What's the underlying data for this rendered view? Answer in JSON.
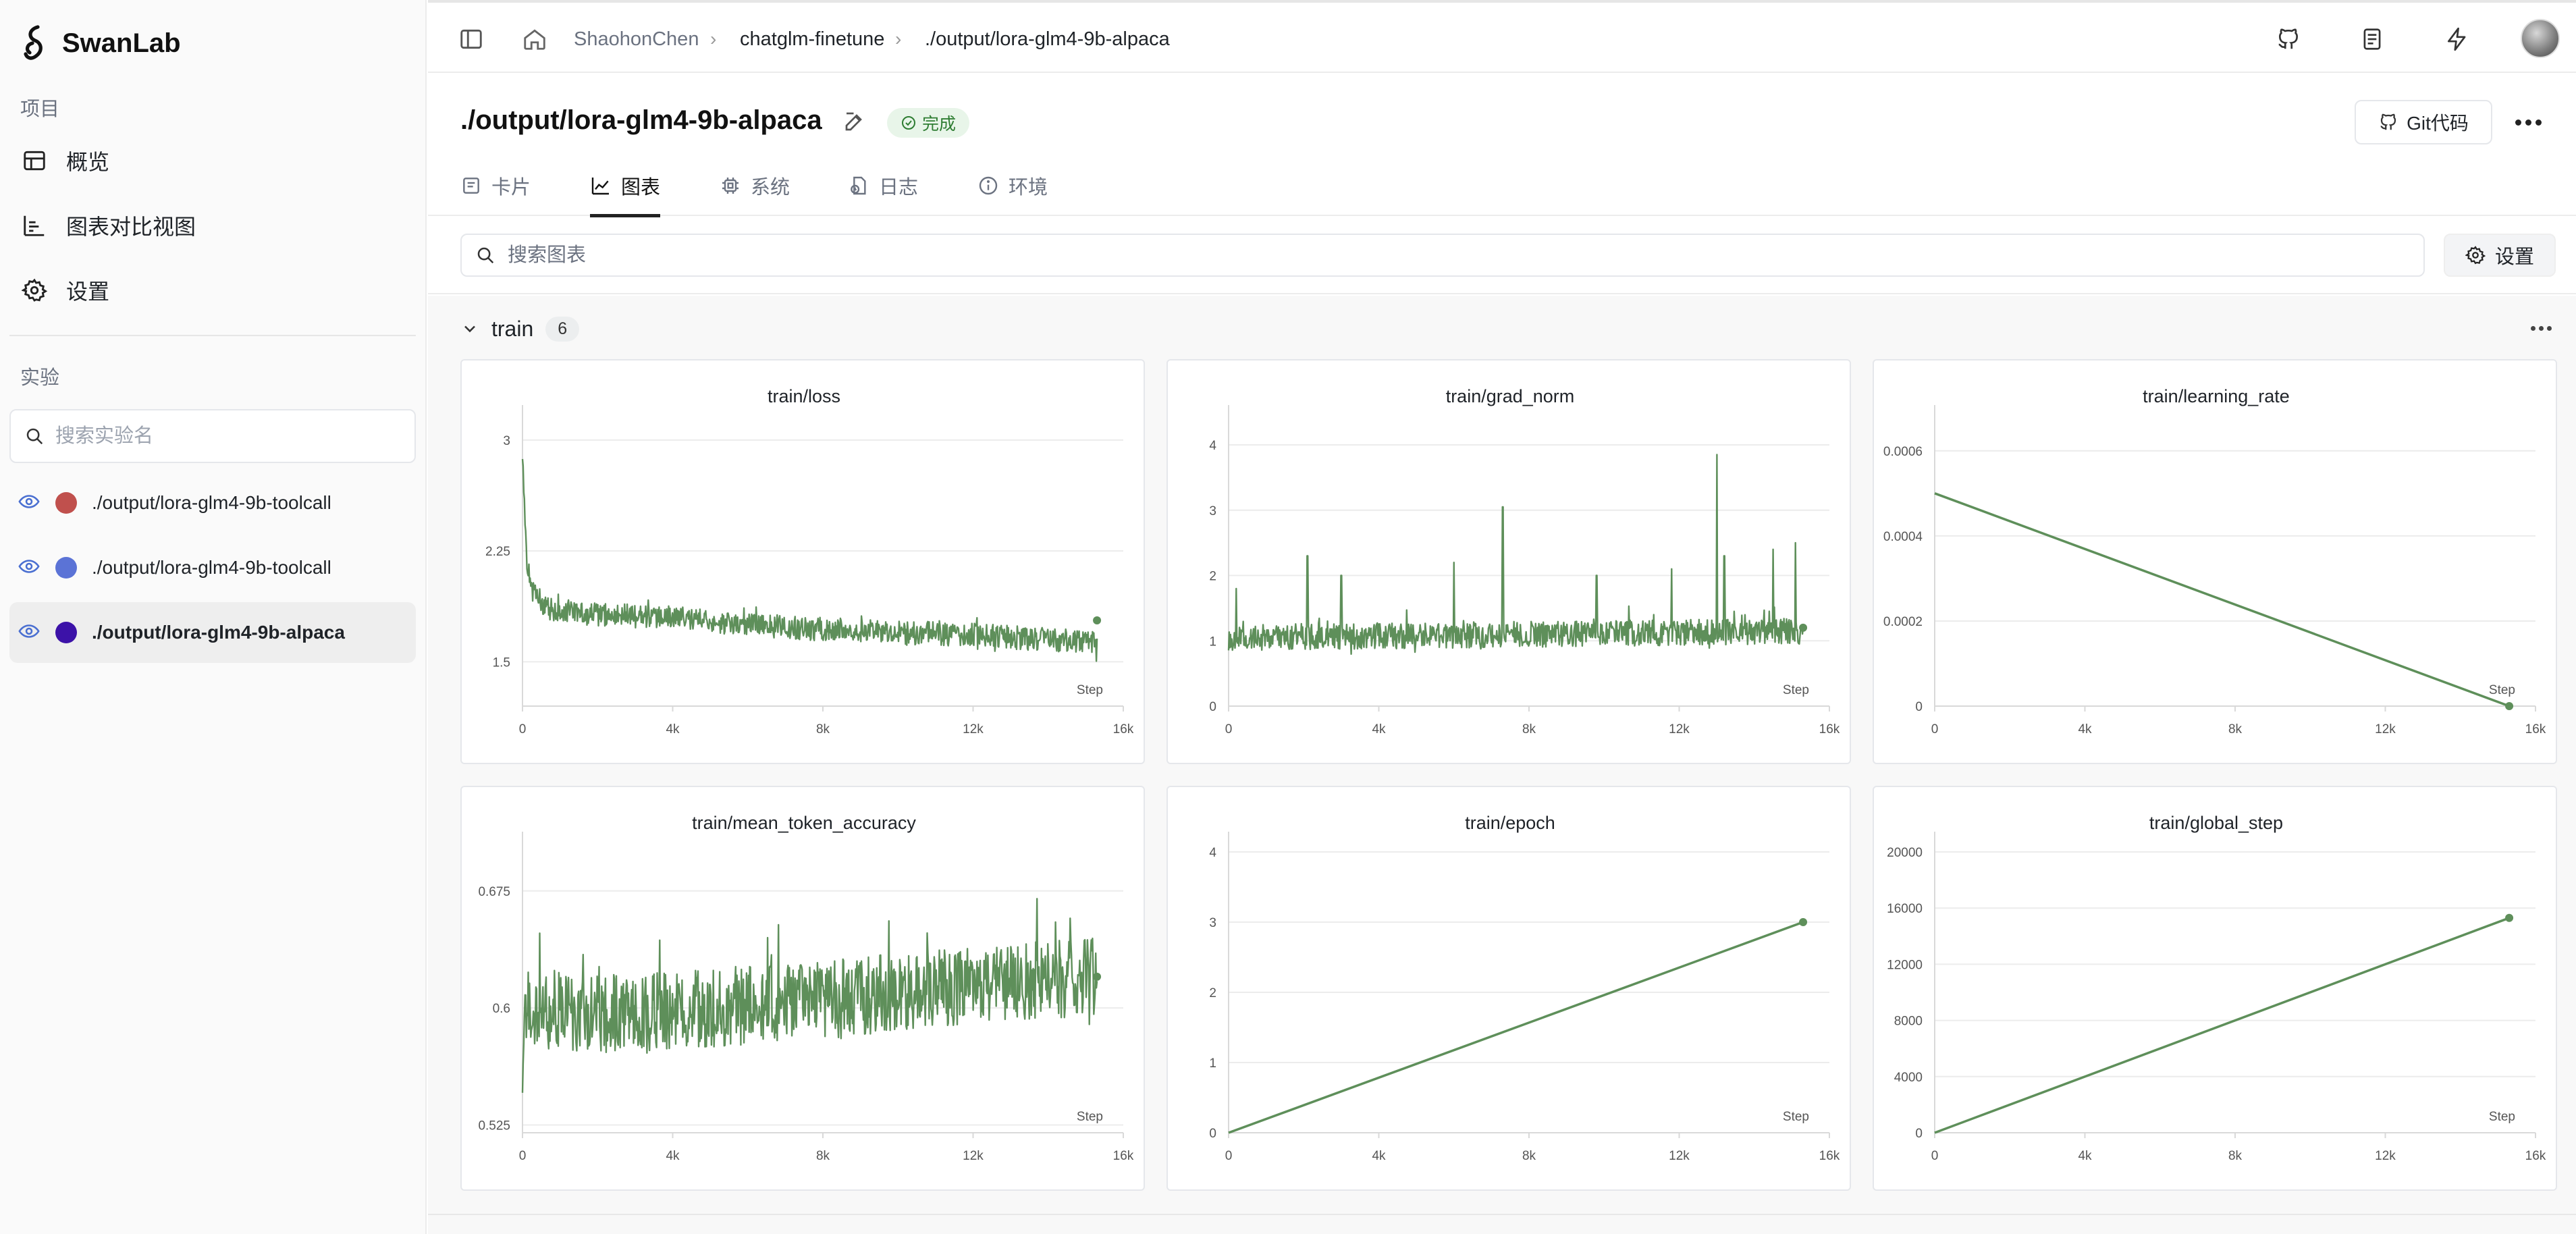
{
  "app": {
    "name": "SwanLab"
  },
  "sidebar": {
    "project_section": "项目",
    "nav": [
      {
        "label": "概览",
        "icon": "table-icon"
      },
      {
        "label": "图表对比视图",
        "icon": "bar-chart-icon"
      },
      {
        "label": "设置",
        "icon": "gear-icon"
      }
    ],
    "experiment_section": "实验",
    "search_placeholder": "搜索实验名",
    "experiments": [
      {
        "name": "./output/lora-glm4-9b-toolcall",
        "color": "#c0504d",
        "active": false
      },
      {
        "name": "./output/lora-glm4-9b-toolcall",
        "color": "#5b73d6",
        "active": false
      },
      {
        "name": "./output/lora-glm4-9b-alpaca",
        "color": "#3c12a8",
        "active": true
      }
    ]
  },
  "breadcrumb": [
    "ShaohonChen",
    "chatglm-finetune",
    "./output/lora-glm4-9b-alpaca"
  ],
  "header": {
    "title": "./output/lora-glm4-9b-alpaca",
    "status": "完成",
    "git_button": "Git代码"
  },
  "tabs": [
    {
      "label": "卡片",
      "icon": "card-icon",
      "active": false
    },
    {
      "label": "图表",
      "icon": "line-chart-icon",
      "active": true
    },
    {
      "label": "系统",
      "icon": "cpu-icon",
      "active": false
    },
    {
      "label": "日志",
      "icon": "log-icon",
      "active": false
    },
    {
      "label": "环境",
      "icon": "info-icon",
      "active": false
    }
  ],
  "chart_toolbar": {
    "search_placeholder": "搜索图表",
    "settings_label": "设置"
  },
  "group": {
    "name": "train",
    "count": "6"
  },
  "colors": {
    "series": "#5e8f5a",
    "grid": "#ececec",
    "axis": "#d9d9d9",
    "tick": "#555555"
  },
  "chart_data": [
    {
      "type": "line",
      "title": "train/loss",
      "xlabel": "Step",
      "x_ticks": [
        "0",
        "4k",
        "8k",
        "12k",
        "16k"
      ],
      "xlim": [
        0,
        16000
      ],
      "y_ticks": [
        1.5,
        2.25,
        3
      ],
      "y_tick_labels": [
        "1.5",
        "2.25",
        "3"
      ],
      "ylim": [
        1.2,
        3.1
      ],
      "series": [
        {
          "noisy": true,
          "x": [
            0,
            100,
            300,
            800,
            2000,
            4000,
            6000,
            8000,
            10000,
            12000,
            14000,
            15300
          ],
          "y": [
            2.95,
            2.2,
            1.95,
            1.85,
            1.82,
            1.8,
            1.75,
            1.72,
            1.7,
            1.68,
            1.65,
            1.63
          ],
          "noise": 0.08,
          "end_point": [
            15300,
            1.78
          ]
        }
      ]
    },
    {
      "type": "line",
      "title": "train/grad_norm",
      "xlabel": "Step",
      "x_ticks": [
        "0",
        "4k",
        "8k",
        "12k",
        "16k"
      ],
      "xlim": [
        0,
        16000
      ],
      "y_ticks": [
        0,
        1,
        2,
        3,
        4
      ],
      "y_tick_labels": [
        "0",
        "1",
        "2",
        "3",
        "4"
      ],
      "ylim": [
        0,
        4.3
      ],
      "series": [
        {
          "noisy": true,
          "x": [
            0,
            15300
          ],
          "y": [
            1.05,
            1.15
          ],
          "noise": 0.2,
          "spikes": [
            [
              200,
              1.8
            ],
            [
              2100,
              2.3
            ],
            [
              3000,
              2.0
            ],
            [
              6000,
              2.2
            ],
            [
              7300,
              3.05
            ],
            [
              9800,
              2.0
            ],
            [
              11800,
              2.1
            ],
            [
              13000,
              3.85
            ],
            [
              13200,
              2.3
            ],
            [
              14500,
              2.4
            ],
            [
              15100,
              2.5
            ]
          ],
          "end_point": [
            15300,
            1.2
          ]
        }
      ]
    },
    {
      "type": "line",
      "title": "train/learning_rate",
      "xlabel": "Step",
      "x_ticks": [
        "0",
        "4k",
        "8k",
        "12k",
        "16k"
      ],
      "xlim": [
        0,
        16000
      ],
      "y_ticks": [
        0,
        0.0002,
        0.0004,
        0.0006
      ],
      "y_tick_labels": [
        "0",
        "0.0002",
        "0.0004",
        "0.0006"
      ],
      "ylim": [
        0,
        0.00066
      ],
      "series": [
        {
          "noisy": false,
          "x": [
            0,
            15300
          ],
          "y": [
            0.0005,
            0
          ],
          "end_point": [
            15300,
            0
          ]
        }
      ]
    },
    {
      "type": "line",
      "title": "train/mean_token_accuracy",
      "xlabel": "Step",
      "x_ticks": [
        "0",
        "4k",
        "8k",
        "12k",
        "16k"
      ],
      "xlim": [
        0,
        16000
      ],
      "y_ticks": [
        0.525,
        0.6,
        0.675
      ],
      "y_tick_labels": [
        "0.525",
        "0.6",
        "0.675"
      ],
      "ylim": [
        0.52,
        0.7
      ],
      "series": [
        {
          "noisy": true,
          "x": [
            0,
            100,
            1000,
            4000,
            8000,
            12000,
            15300
          ],
          "y": [
            0.57,
            0.595,
            0.595,
            0.598,
            0.605,
            0.615,
            0.62
          ],
          "noise": 0.025,
          "spikes": [
            [
              13700,
              0.67
            ],
            [
              14200,
              0.655
            ]
          ],
          "end_point": [
            15300,
            0.62
          ]
        }
      ]
    },
    {
      "type": "line",
      "title": "train/epoch",
      "xlabel": "Step",
      "x_ticks": [
        "0",
        "4k",
        "8k",
        "12k",
        "16k"
      ],
      "xlim": [
        0,
        16000
      ],
      "y_ticks": [
        0,
        1,
        2,
        3,
        4
      ],
      "y_tick_labels": [
        "0",
        "1",
        "2",
        "3",
        "4"
      ],
      "ylim": [
        0,
        4
      ],
      "series": [
        {
          "noisy": false,
          "x": [
            0,
            15300
          ],
          "y": [
            0,
            3
          ],
          "end_point": [
            15300,
            3
          ]
        }
      ]
    },
    {
      "type": "line",
      "title": "train/global_step",
      "xlabel": "Step",
      "x_ticks": [
        "0",
        "4k",
        "8k",
        "12k",
        "16k"
      ],
      "xlim": [
        0,
        16000
      ],
      "y_ticks": [
        0,
        4000,
        8000,
        12000,
        16000,
        20000
      ],
      "y_tick_labels": [
        "0",
        "4000",
        "8000",
        "12000",
        "16000",
        "20000"
      ],
      "ylim": [
        0,
        20000
      ],
      "series": [
        {
          "noisy": false,
          "x": [
            0,
            15300
          ],
          "y": [
            0,
            15300
          ],
          "end_point": [
            15300,
            15300
          ]
        }
      ]
    }
  ]
}
